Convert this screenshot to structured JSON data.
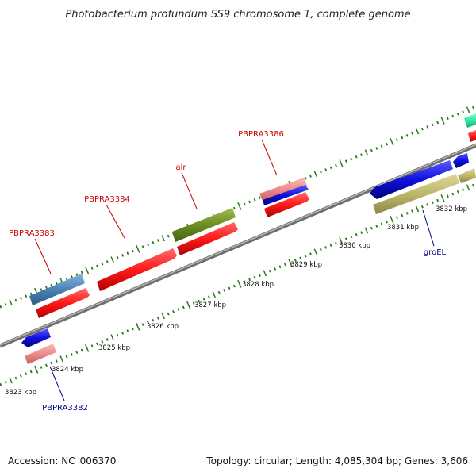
{
  "title": "Photobacterium profundum SS9 chromosome 1, complete genome",
  "accession": "Accession: NC_006370",
  "topology": "Topology: circular; Length: 4,085,304 bp; Genes: 3,606",
  "colors": {
    "backbone": "#888888",
    "tick": "#2a7a1a",
    "label_forward": "#cc0000",
    "label_reverse": "#00008b",
    "red": "#ff1a1a",
    "blue": "#1010e0",
    "steelblue": "#4a82b4",
    "olive": "#6b8e23",
    "pink": "#f08a8a",
    "khaki": "#bdb76b",
    "teal": "#30e8a0"
  },
  "scale_labels": [
    "3823 kbp",
    "3824 kbp",
    "3825 kbp",
    "3826 kbp",
    "3827 kbp",
    "3828 kbp",
    "3829 kbp",
    "3830 kbp",
    "3831 kbp",
    "3832 kbp"
  ],
  "gene_labels": [
    {
      "text": "PBPRA3383",
      "strand": "forward"
    },
    {
      "text": "PBPRA3384",
      "strand": "forward"
    },
    {
      "text": "alr",
      "strand": "forward"
    },
    {
      "text": "PBPRA3386",
      "strand": "forward"
    },
    {
      "text": "groEL",
      "strand": "reverse"
    },
    {
      "text": "PBPRA3382",
      "strand": "reverse"
    }
  ],
  "features": [
    {
      "name": "gene-pbpra3383-feature",
      "color": "steelblue"
    },
    {
      "name": "cds-pbpra3383-feature",
      "color": "red"
    },
    {
      "name": "cds-pbpra3384-feature",
      "color": "red"
    },
    {
      "name": "gene-alr-feature",
      "color": "olive"
    },
    {
      "name": "cds-alr-feature",
      "color": "red"
    },
    {
      "name": "gene-pbpra3386-feature",
      "color": "pink"
    },
    {
      "name": "mrna-pbpra3386-feature",
      "color": "blue"
    },
    {
      "name": "cds-pbpra3386-feature",
      "color": "red"
    },
    {
      "name": "gene-groel-feature",
      "color": "blue"
    },
    {
      "name": "cds-groel-feature",
      "color": "khaki"
    },
    {
      "name": "gene-next-feature",
      "color": "blue"
    },
    {
      "name": "cds-next-feature",
      "color": "khaki"
    },
    {
      "name": "gene-edge-feature",
      "color": "teal"
    },
    {
      "name": "cds-edge-feature",
      "color": "red"
    },
    {
      "name": "gene-pbpra3382-feature",
      "color": "blue"
    },
    {
      "name": "cds-pbpra3382-feature",
      "color": "pink"
    }
  ]
}
